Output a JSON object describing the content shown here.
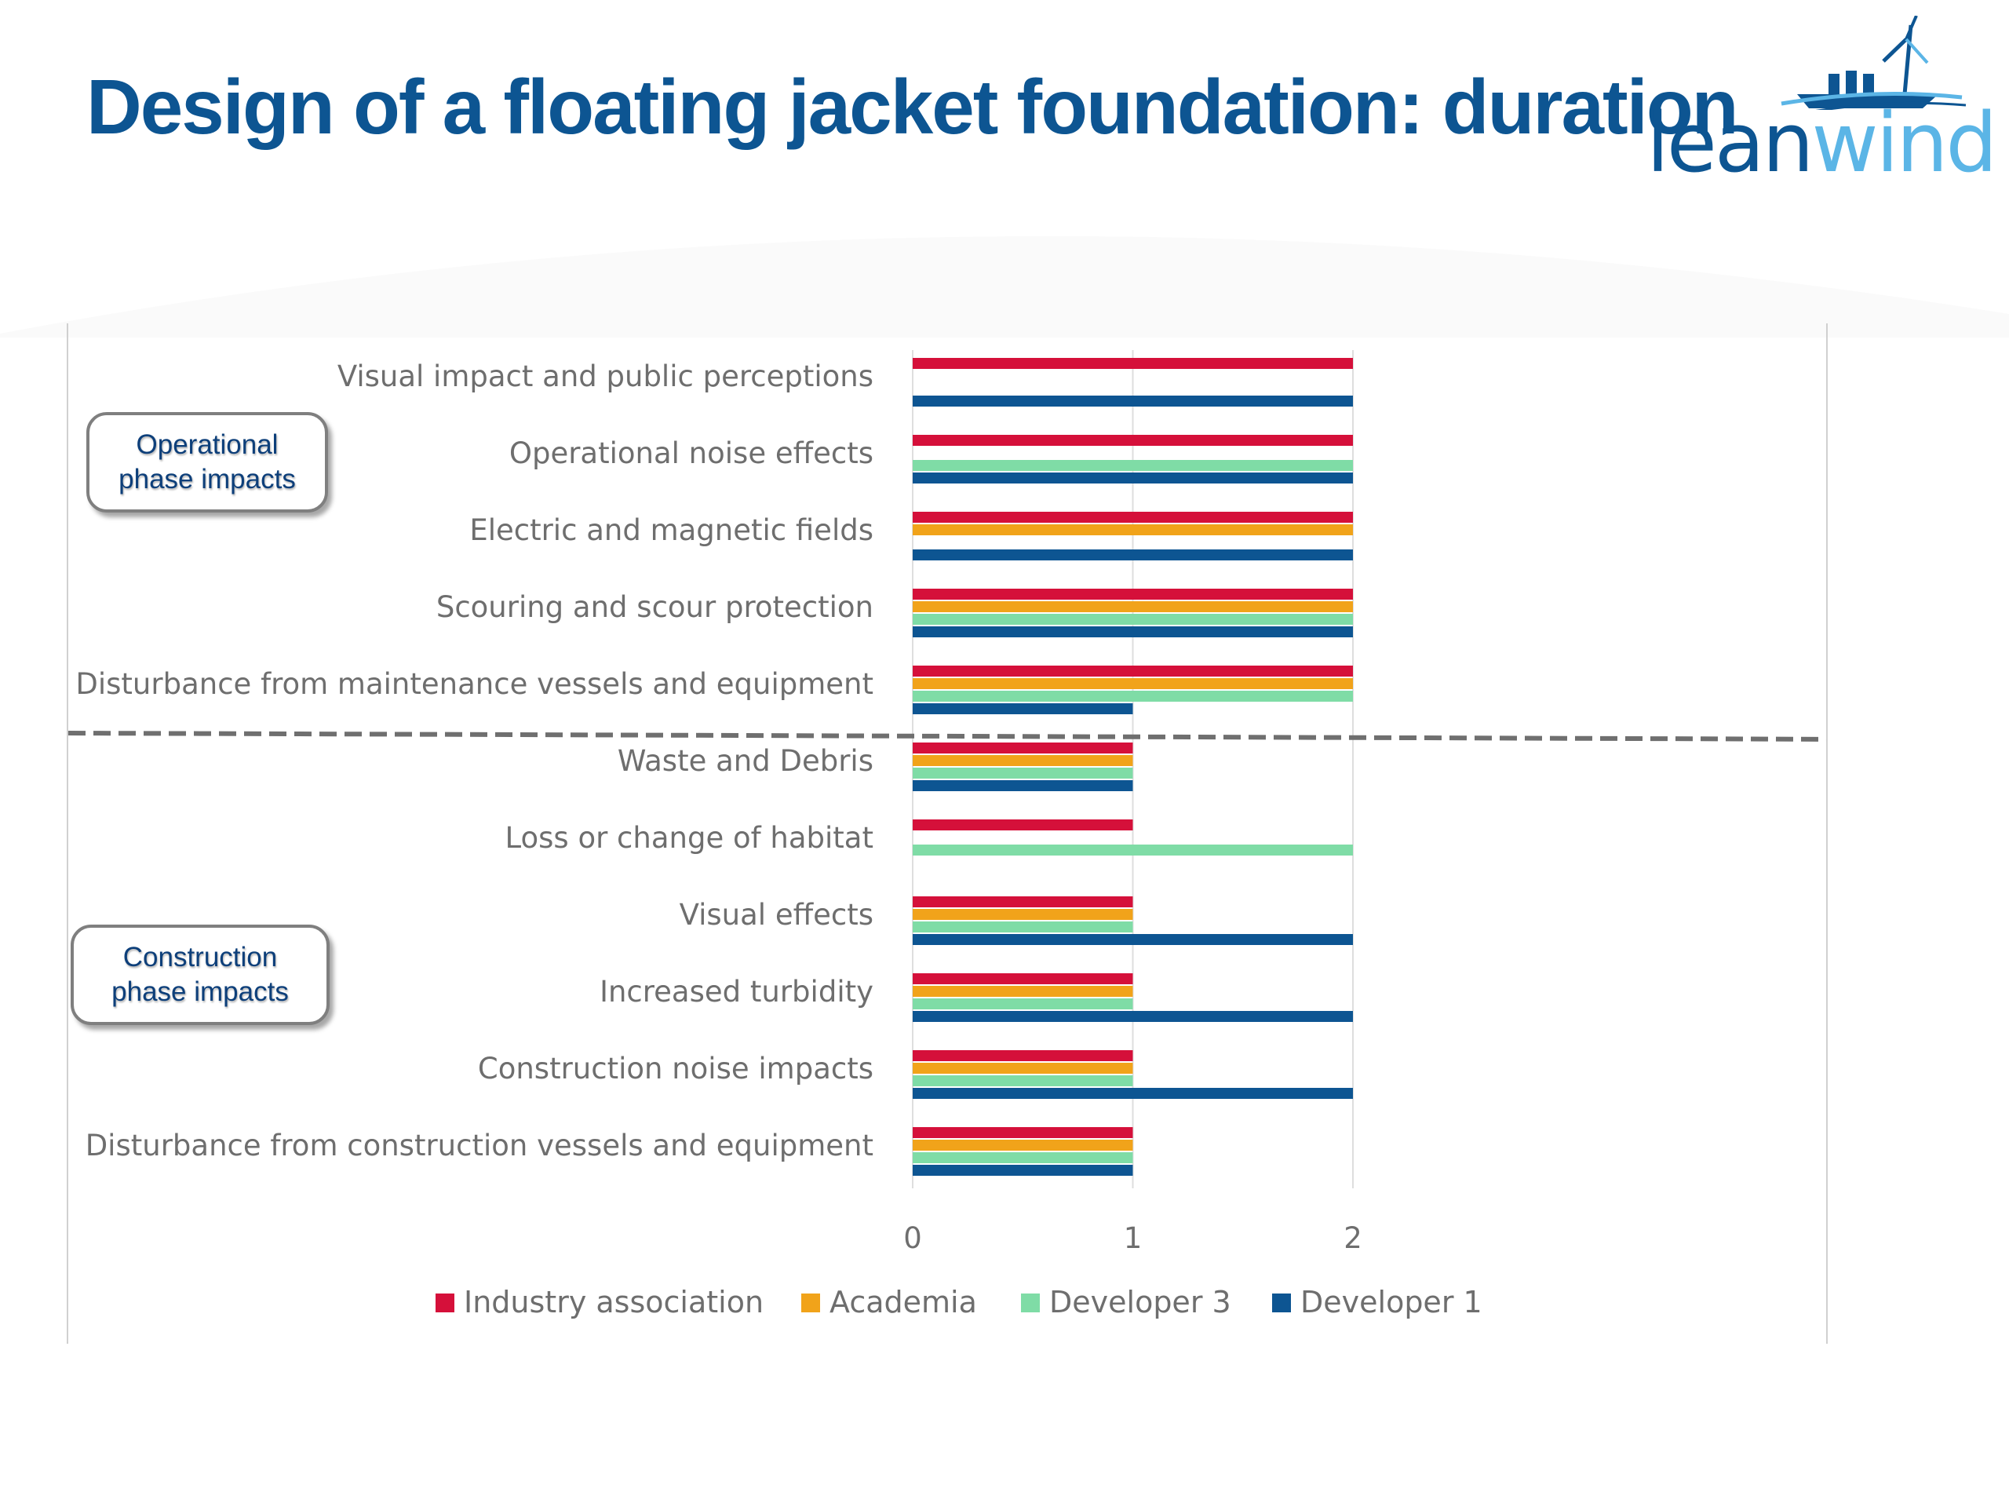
{
  "slide": {
    "title": "Design of a floating jacket foundation: duration",
    "logo_lean": "lean",
    "logo_wind": "wind"
  },
  "callouts": {
    "operational": "Operational\nphase impacts",
    "construction": "Construction\nphase impacts"
  },
  "colors": {
    "title": "#0d5592",
    "Industry association": "#d5103a",
    "Academia": "#f1a31a",
    "Developer 3": "#7fdca6",
    "Developer 1": "#0d5592",
    "divider": "#6f6f6f"
  },
  "chart_data": {
    "type": "bar",
    "orientation": "horizontal",
    "title": "",
    "xlabel": "",
    "ylabel": "",
    "xlim": [
      0,
      2
    ],
    "x_ticks": [
      "0",
      "1",
      "2"
    ],
    "grid": "vertical",
    "legend_position": "bottom",
    "categories": [
      "Visual impact and public perceptions",
      "Operational noise effects",
      "Electric and magnetic fields",
      "Scouring and scour protection",
      "Disturbance from maintenance vessels and equipment",
      "Waste and Debris",
      "Loss or change of habitat",
      "Visual effects",
      "Increased turbidity",
      "Construction noise impacts",
      "Disturbance from construction vessels and equipment"
    ],
    "series": [
      {
        "name": "Industry association",
        "values": [
          2,
          2,
          2,
          2,
          2,
          1,
          1,
          1,
          1,
          1,
          1
        ]
      },
      {
        "name": "Academia",
        "values": [
          0,
          0,
          2,
          2,
          2,
          1,
          0,
          1,
          1,
          1,
          1
        ]
      },
      {
        "name": "Developer 3",
        "values": [
          0,
          2,
          0,
          2,
          2,
          1,
          2,
          1,
          1,
          1,
          1
        ]
      },
      {
        "name": "Developer 1",
        "values": [
          2,
          2,
          2,
          2,
          1,
          1,
          0,
          2,
          2,
          2,
          1
        ]
      }
    ]
  }
}
